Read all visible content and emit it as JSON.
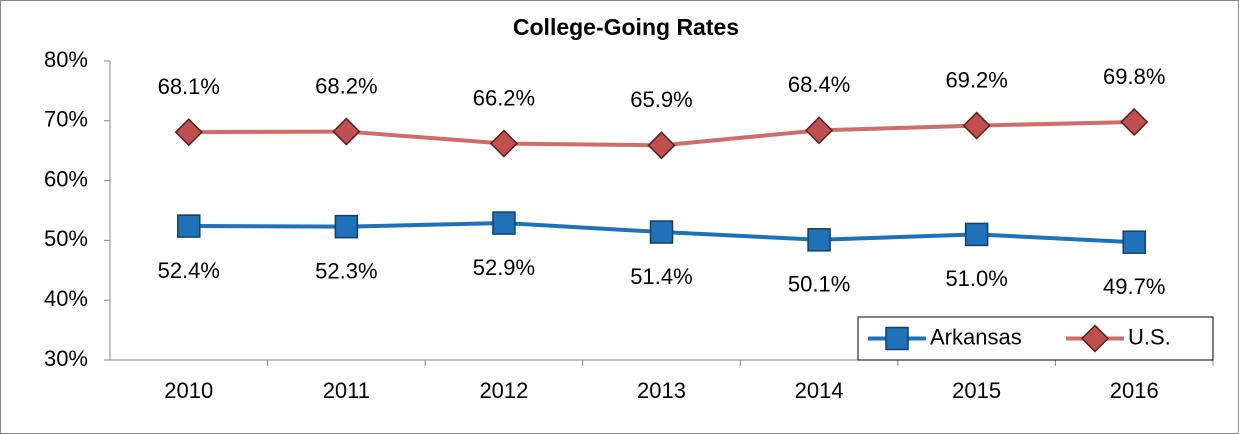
{
  "chart_data": {
    "type": "line",
    "title": "College-Going Rates",
    "categories": [
      "2010",
      "2011",
      "2012",
      "2013",
      "2014",
      "2015",
      "2016"
    ],
    "series": [
      {
        "name": "Arkansas",
        "color": "#1f72ba",
        "values": [
          52.4,
          52.3,
          52.9,
          51.4,
          50.1,
          51.0,
          49.7
        ],
        "value_labels": [
          "52.4%",
          "52.3%",
          "52.9%",
          "51.4%",
          "50.1%",
          "51.0%",
          "49.7%"
        ]
      },
      {
        "name": "U.S.",
        "color": "#c0504d",
        "values": [
          68.1,
          68.2,
          66.2,
          65.9,
          68.4,
          69.2,
          69.8
        ],
        "value_labels": [
          "68.1%",
          "68.2%",
          "66.2%",
          "65.9%",
          "68.4%",
          "69.2%",
          "69.8%"
        ]
      }
    ],
    "ylim": [
      30,
      80
    ],
    "yticks": [
      {
        "value": 30,
        "label": "30%"
      },
      {
        "value": 40,
        "label": "40%"
      },
      {
        "value": 50,
        "label": "50%"
      },
      {
        "value": 60,
        "label": "60%"
      },
      {
        "value": 70,
        "label": "70%"
      },
      {
        "value": 80,
        "label": "80%"
      }
    ],
    "legend": "lower right"
  }
}
